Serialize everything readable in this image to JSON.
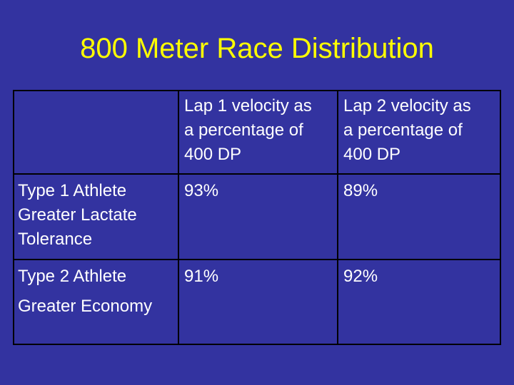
{
  "slide": {
    "title": "800 Meter Race Distribution",
    "background_color": "#3333a0",
    "title_color": "#ffff00",
    "text_color": "#ffffff",
    "border_color": "#000000"
  },
  "table": {
    "headers": [
      "",
      [
        "Lap 1 velocity as",
        "a percentage of",
        "400 DP"
      ],
      [
        "Lap 2 velocity as",
        "a percentage of",
        "400 DP"
      ]
    ],
    "rows": [
      {
        "label": [
          "Type 1 Athlete",
          "Greater Lactate",
          "Tolerance"
        ],
        "lap1": "93%",
        "lap2": "89%"
      },
      {
        "label": [
          "Type 2 Athlete",
          "Greater Economy"
        ],
        "lap1": "91%",
        "lap2": "92%"
      }
    ]
  }
}
